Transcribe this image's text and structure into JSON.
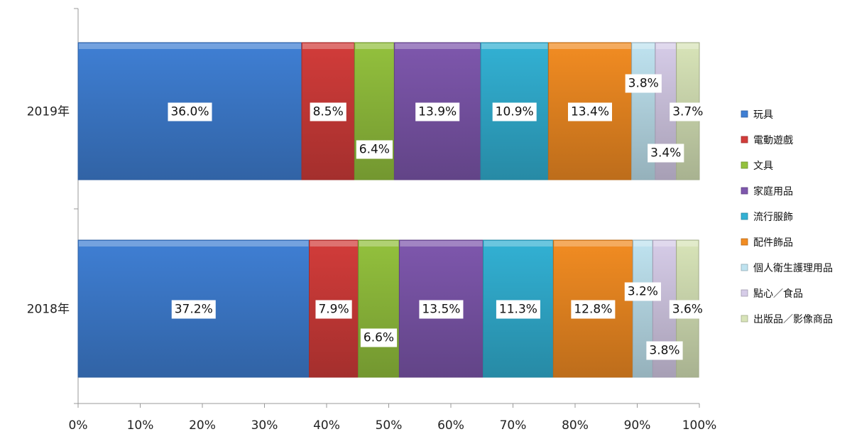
{
  "chart_data": {
    "type": "bar",
    "orientation": "horizontal",
    "stacked": "percent",
    "categories": [
      "2019年",
      "2018年"
    ],
    "series": [
      {
        "name": "玩具",
        "color": "#3f7fd4",
        "values": [
          36.0,
          37.2
        ],
        "labels": [
          "36.0%",
          "37.2%"
        ]
      },
      {
        "name": "電動遊戲",
        "color": "#d23c3a",
        "values": [
          8.5,
          7.9
        ],
        "labels": [
          "8.5%",
          "7.9%"
        ]
      },
      {
        "name": "文具",
        "color": "#93c13d",
        "values": [
          6.4,
          6.6
        ],
        "labels": [
          "6.4%",
          "6.6%"
        ]
      },
      {
        "name": "家庭用品",
        "color": "#7e57ad",
        "values": [
          13.9,
          13.5
        ],
        "labels": [
          "13.9%",
          "13.5%"
        ]
      },
      {
        "name": "流行服飾",
        "color": "#32b1d4",
        "values": [
          10.9,
          11.3
        ],
        "labels": [
          "10.9%",
          "11.3%"
        ]
      },
      {
        "name": "配件飾品",
        "color": "#f28c22",
        "values": [
          13.4,
          12.8
        ],
        "labels": [
          "13.4%",
          "12.8%"
        ]
      },
      {
        "name": "個人衛生護理用品",
        "color": "#bfe3f0",
        "values": [
          3.8,
          3.2
        ],
        "labels": [
          "3.8%",
          "3.2%"
        ]
      },
      {
        "name": "點心／食品",
        "color": "#d6cce8",
        "values": [
          3.4,
          3.8
        ],
        "labels": [
          "3.4%",
          "3.8%"
        ]
      },
      {
        "name": "出版品／影像商品",
        "color": "#d8e4b8",
        "values": [
          3.7,
          3.6
        ],
        "labels": [
          "3.7%",
          "3.6%"
        ]
      }
    ],
    "x_ticks": [
      "0%",
      "10%",
      "20%",
      "30%",
      "40%",
      "50%",
      "60%",
      "70%",
      "80%",
      "90%",
      "100%"
    ],
    "xlim": [
      0,
      100
    ],
    "grid": false,
    "legend_position": "right"
  }
}
